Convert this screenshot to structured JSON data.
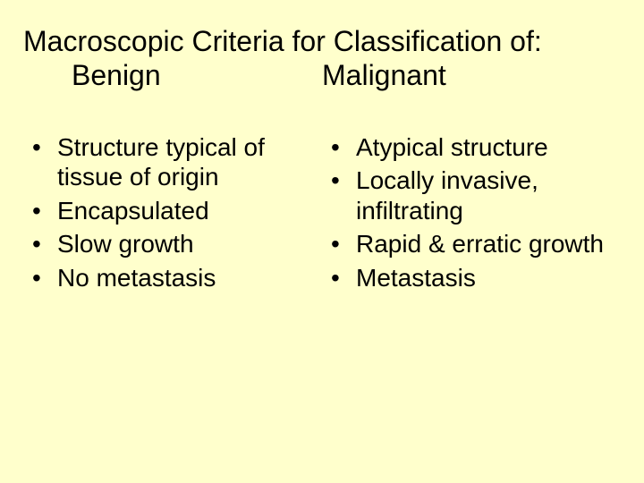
{
  "colors": {
    "background": "#ffffcc",
    "text": "#000000"
  },
  "typography": {
    "title_fontsize": 32,
    "body_fontsize": 28,
    "font_family": "Arial"
  },
  "title": {
    "line1": "Macroscopic Criteria for Classification of:",
    "left": "Benign",
    "right": "Malignant"
  },
  "bullet_glyph": "•",
  "benign": {
    "items": [
      "Structure typical of tissue of origin",
      "Encapsulated",
      "Slow growth",
      "No metastasis"
    ]
  },
  "malignant": {
    "items": [
      "Atypical structure",
      "Locally invasive, infiltrating",
      "Rapid & erratic growth",
      "Metastasis"
    ]
  }
}
